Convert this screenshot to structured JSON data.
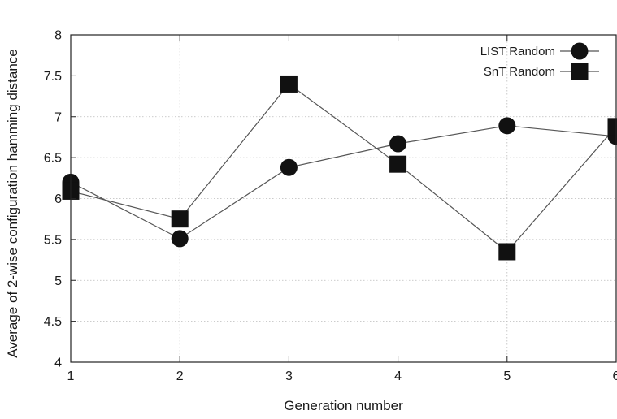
{
  "chart_data": {
    "type": "line",
    "title": "",
    "xlabel": "Generation number",
    "ylabel": "Average of 2-wise configuration hamming distance",
    "x": [
      1,
      2,
      3,
      4,
      5,
      6
    ],
    "xlim": [
      1,
      6
    ],
    "ylim": [
      4,
      8
    ],
    "xticks": [
      "1",
      "2",
      "3",
      "4",
      "5",
      "6"
    ],
    "yticks": [
      "4",
      "4.5",
      "5",
      "5.5",
      "6",
      "6.5",
      "7",
      "7.5",
      "8"
    ],
    "grid": true,
    "legend_position": "top-right",
    "series": [
      {
        "name": "LIST Random",
        "marker": "circle",
        "values": [
          6.2,
          5.51,
          6.38,
          6.67,
          6.89,
          6.76
        ]
      },
      {
        "name": "SnT Random",
        "marker": "square",
        "values": [
          6.09,
          5.75,
          7.4,
          6.42,
          5.35,
          6.88
        ]
      }
    ],
    "colors": {
      "line": "#555555",
      "marker": "#111111",
      "grid": "#bbbbbb",
      "axis": "#222222"
    }
  }
}
